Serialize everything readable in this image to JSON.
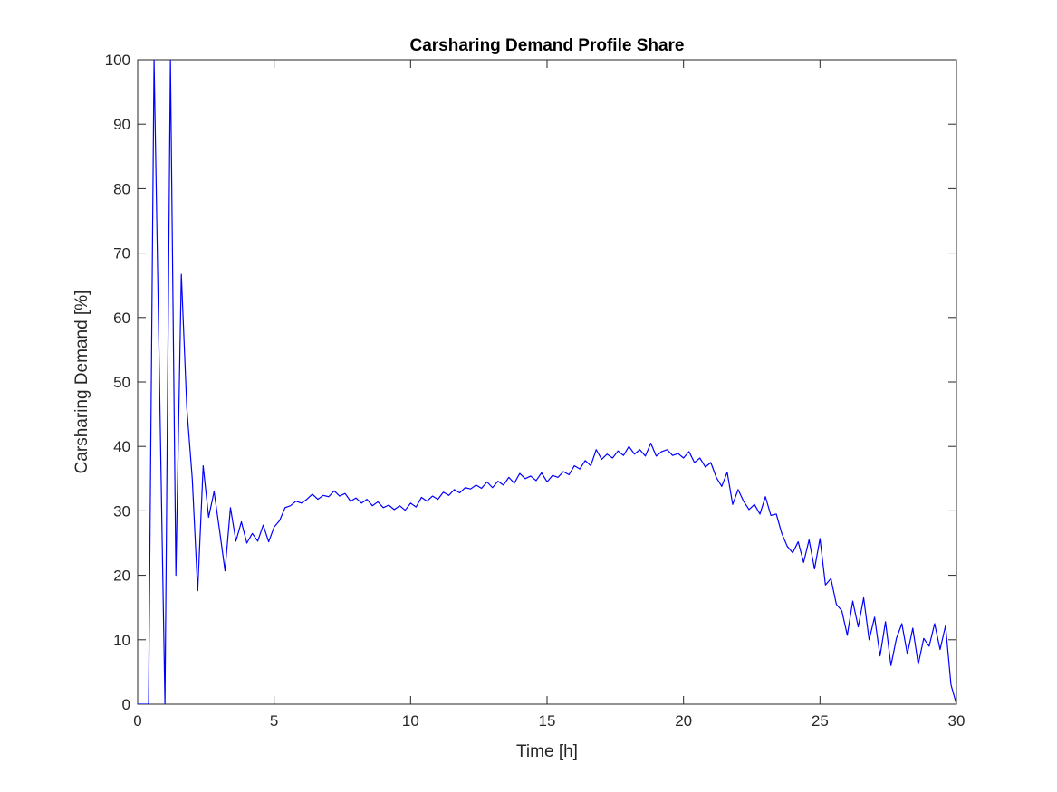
{
  "chart_data": {
    "type": "line",
    "title": "Carsharing Demand Profile Share",
    "xlabel": "Time [h]",
    "ylabel": "Carsharing Demand [%]",
    "x": [
      0,
      0.2,
      0.4,
      0.6,
      0.8,
      1,
      1.2,
      1.4,
      1.6,
      1.8,
      2,
      2.2,
      2.4,
      2.6,
      2.8,
      3,
      3.2,
      3.4,
      3.6,
      3.8,
      4,
      4.2,
      4.4,
      4.6,
      4.8,
      5,
      5.2,
      5.4,
      5.6,
      5.8,
      6,
      6.2,
      6.4,
      6.6,
      6.8,
      7,
      7.2,
      7.4,
      7.6,
      7.8,
      8,
      8.2,
      8.4,
      8.6,
      8.8,
      9,
      9.2,
      9.4,
      9.6,
      9.8,
      10,
      10.2,
      10.4,
      10.6,
      10.8,
      11,
      11.2,
      11.4,
      11.6,
      11.8,
      12,
      12.2,
      12.4,
      12.6,
      12.8,
      13,
      13.2,
      13.4,
      13.6,
      13.8,
      14,
      14.2,
      14.4,
      14.6,
      14.8,
      15,
      15.2,
      15.4,
      15.6,
      15.8,
      16,
      16.2,
      16.4,
      16.6,
      16.8,
      17,
      17.2,
      17.4,
      17.6,
      17.8,
      18,
      18.2,
      18.4,
      18.6,
      18.8,
      19,
      19.2,
      19.4,
      19.6,
      19.8,
      20,
      20.2,
      20.4,
      20.6,
      20.8,
      21,
      21.2,
      21.4,
      21.6,
      21.8,
      22,
      22.2,
      22.4,
      22.6,
      22.8,
      23,
      23.2,
      23.4,
      23.6,
      23.8,
      24,
      24.2,
      24.4,
      24.6,
      24.8,
      25,
      25.2,
      25.4,
      25.6,
      25.8,
      26,
      26.2,
      26.4,
      26.6,
      26.8,
      27,
      27.2,
      27.4,
      27.6,
      27.8,
      28,
      28.2,
      28.4,
      28.6,
      28.8,
      29,
      29.2,
      29.4,
      29.6,
      29.8,
      30
    ],
    "series": [
      {
        "color": "#0000ff",
        "values": [
          0,
          0,
          0,
          100,
          50,
          0,
          100,
          20,
          66.7,
          46,
          35,
          17.6,
          37,
          29,
          33,
          27,
          20.7,
          30.5,
          25.3,
          28.3,
          25,
          26.5,
          25.3,
          27.8,
          25.2,
          27.5,
          28.5,
          30.5,
          30.8,
          31.5,
          31.2,
          31.8,
          32.6,
          31.8,
          32.4,
          32.2,
          33.1,
          32.3,
          32.7,
          31.5,
          32,
          31.2,
          31.8,
          30.8,
          31.4,
          30.5,
          30.9,
          30.2,
          30.8,
          30.1,
          31.2,
          30.6,
          32.1,
          31.5,
          32.3,
          31.8,
          32.9,
          32.4,
          33.3,
          32.8,
          33.6,
          33.4,
          34,
          33.5,
          34.5,
          33.6,
          34.6,
          34,
          35.2,
          34.3,
          35.8,
          35,
          35.4,
          34.7,
          35.9,
          34.5,
          35.5,
          35.2,
          36.1,
          35.6,
          37,
          36.5,
          37.8,
          37,
          39.5,
          38,
          38.8,
          38.2,
          39.3,
          38.6,
          40,
          38.8,
          39.5,
          38.5,
          40.5,
          38.5,
          39.2,
          39.5,
          38.6,
          38.9,
          38.2,
          39.2,
          37.5,
          38.2,
          36.8,
          37.5,
          35.2,
          33.8,
          36,
          31,
          33.3,
          31.5,
          30.2,
          31,
          29.5,
          32.2,
          29.3,
          29.5,
          26.5,
          24.5,
          23.5,
          25.2,
          22,
          25.5,
          21,
          25.7,
          18.5,
          19.5,
          15.5,
          14.5,
          10.7,
          16,
          12,
          16.5,
          10,
          13.5,
          7.5,
          12.8,
          6,
          10.2,
          12.5,
          7.8,
          11.8,
          6.2,
          10.2,
          9,
          12.5,
          8.5,
          12.2,
          3,
          0
        ]
      }
    ],
    "xlim": [
      0,
      30
    ],
    "xticks": [
      0,
      5,
      10,
      15,
      20,
      25,
      30
    ],
    "ylim": [
      0,
      100
    ],
    "yticks": [
      0,
      10,
      20,
      30,
      40,
      50,
      60,
      70,
      80,
      90,
      100
    ],
    "grid": false
  }
}
